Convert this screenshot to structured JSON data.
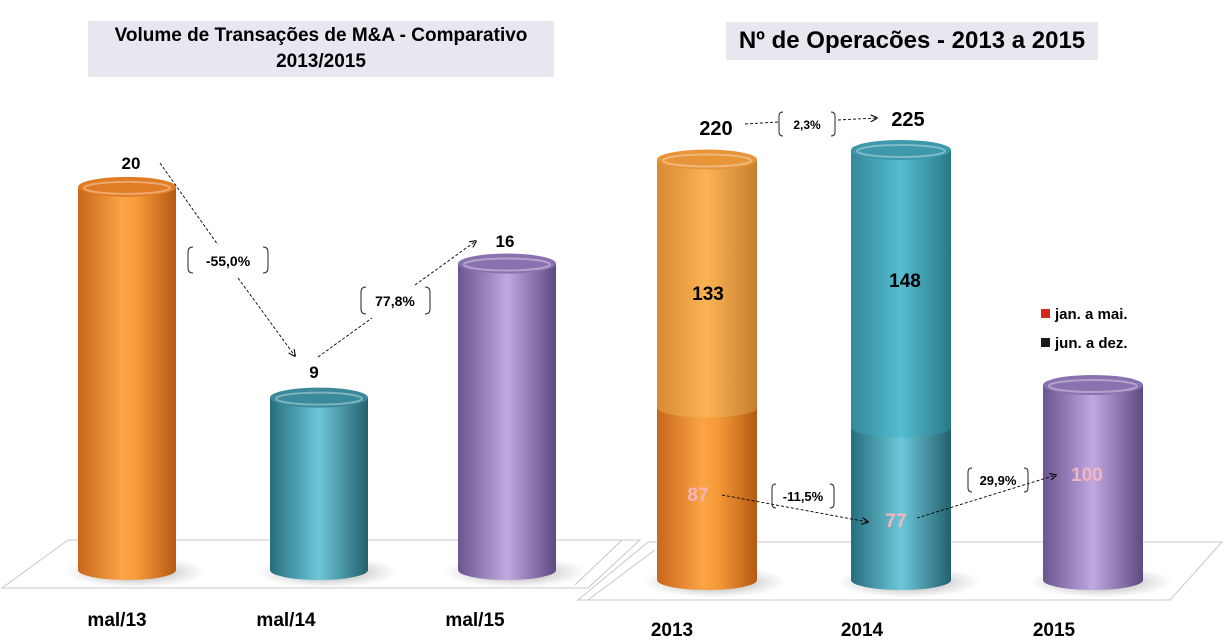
{
  "chart_data": [
    {
      "type": "bar",
      "title_line1": "Volume de Transações de M&A - Comparativo",
      "title_line2": "2013/2015",
      "categories": [
        "mal/13",
        "mal/14",
        "mal/15"
      ],
      "values": [
        20,
        9,
        16
      ],
      "value_labels": [
        "20",
        "9",
        "16"
      ],
      "colors": [
        "#f0892a",
        "#3a9db0",
        "#9a7fc0"
      ],
      "changes": [
        {
          "from": "mal/13",
          "to": "mal/14",
          "label": "-55,0%"
        },
        {
          "from": "mal/14",
          "to": "mal/15",
          "label": "77,8%"
        }
      ],
      "ylim": [
        0,
        22
      ]
    },
    {
      "type": "bar",
      "stacked": true,
      "title": "Nº de Operacões  - 2013 a 2015",
      "categories": [
        "2013",
        "2014",
        "2015"
      ],
      "series": [
        {
          "name": "jan. a mai.",
          "values": [
            87,
            77,
            100
          ],
          "value_labels": [
            "87",
            "77",
            "100"
          ],
          "legend_color": "#d42a1e"
        },
        {
          "name": "jun. a dez.",
          "values": [
            133,
            148,
            null
          ],
          "value_labels": [
            "133",
            "148",
            ""
          ],
          "legend_color": "#1a1a1a"
        }
      ],
      "totals": [
        220,
        225,
        null
      ],
      "total_labels": [
        "220",
        "225",
        ""
      ],
      "bar_colors": {
        "2013": [
          "#f0892a",
          "#f5aa4a"
        ],
        "2014": [
          "#3a8fa0",
          "#4bb3c8"
        ],
        "2015": [
          "#9a7fc0",
          "#9a7fc0"
        ]
      },
      "changes": [
        {
          "from": "2013",
          "to": "2014",
          "series": "total",
          "label": "2,3%"
        },
        {
          "from": "2013",
          "to": "2014",
          "series": "jan. a mai.",
          "label": "-11,5%"
        },
        {
          "from": "2014",
          "to": "2015",
          "series": "jan. a mai.",
          "label": "29,9%"
        }
      ],
      "legend_position": "right",
      "ylim": [
        0,
        240
      ]
    }
  ]
}
